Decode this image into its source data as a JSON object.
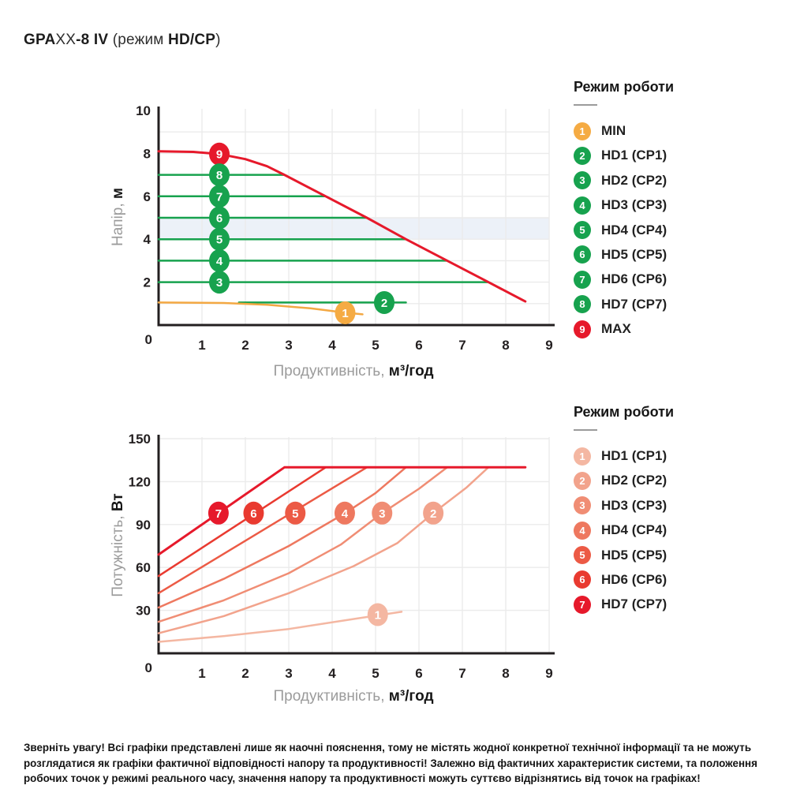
{
  "page": {
    "title_parts": [
      {
        "text": "GPA",
        "bold": true
      },
      {
        "text": "XX",
        "bold": false
      },
      {
        "text": "-8 IV",
        "bold": true
      },
      {
        "text": " (режим ",
        "bold": false
      },
      {
        "text": "HD/CP",
        "bold": true
      },
      {
        "text": ")",
        "bold": false
      }
    ],
    "note": "Зверніть увагу! Всі графіки представлені лише як наочні пояснення, тому не містять жодної конкретної технічної інформації та не можуть розглядатися як графіки фактичної відповідності напору та продуктивності! Залежно від фактичних характеристик системи, та положення робочих точок у режимі реального часу, значення напору та продуктивності можуть суттєво відрізнятись від точок на графіках!"
  },
  "colors": {
    "green": "#17a24e",
    "orange": "#f5ab43",
    "red": "#e6192b",
    "grid": "#ebebeb",
    "axis": "#231f20",
    "band": "#ecf1f8"
  },
  "chart_data": [
    {
      "id": "head-chart",
      "type": "line",
      "xlabel_gray": "Продуктивність,",
      "xlabel_bold": "м³/год",
      "ylabel_gray": "Напір,",
      "ylabel_bold": "м",
      "xlim": [
        0,
        9
      ],
      "ylim": [
        0,
        10
      ],
      "xticks": [
        0,
        1,
        2,
        3,
        4,
        5,
        6,
        7,
        8,
        9
      ],
      "yticks": [
        2,
        4,
        6,
        8,
        10
      ],
      "grid_y": [
        1,
        2,
        3,
        4,
        5,
        6,
        7,
        8,
        9
      ],
      "band": {
        "y0": 4,
        "y1": 5,
        "color": "#ecf1f8"
      },
      "series": [
        {
          "name": "HD7 (CP7)",
          "color": "#17a24e",
          "width": 2.5,
          "points": [
            [
              0,
              7
            ],
            [
              2.9,
              7
            ]
          ]
        },
        {
          "name": "HD6 (CP6)",
          "color": "#17a24e",
          "width": 2.5,
          "points": [
            [
              0,
              6
            ],
            [
              3.85,
              6
            ]
          ]
        },
        {
          "name": "HD5 (CP5)",
          "color": "#17a24e",
          "width": 2.5,
          "points": [
            [
              0,
              5
            ],
            [
              4.8,
              5
            ]
          ]
        },
        {
          "name": "HD4 (CP4)",
          "color": "#17a24e",
          "width": 2.5,
          "points": [
            [
              0,
              4
            ],
            [
              5.7,
              4
            ]
          ]
        },
        {
          "name": "HD3 (CP3)",
          "color": "#17a24e",
          "width": 2.5,
          "points": [
            [
              0,
              3
            ],
            [
              6.65,
              3
            ]
          ]
        },
        {
          "name": "HD2 (CP2)",
          "color": "#17a24e",
          "width": 2.5,
          "points": [
            [
              0,
              2
            ],
            [
              7.6,
              2
            ]
          ]
        },
        {
          "name": "HD1 (CP1)",
          "color": "#17a24e",
          "width": 2.5,
          "points": [
            [
              1.85,
              1.05
            ],
            [
              5.7,
              1.05
            ]
          ]
        },
        {
          "name": "MIN",
          "color": "#f3a843",
          "width": 2.5,
          "points": [
            [
              0,
              1.05
            ],
            [
              1.5,
              1.03
            ],
            [
              2.5,
              0.95
            ],
            [
              3.5,
              0.78
            ],
            [
              4.3,
              0.58
            ],
            [
              4.7,
              0.5
            ]
          ]
        },
        {
          "name": "MAX",
          "color": "#e6192b",
          "width": 3,
          "points": [
            [
              0,
              8.1
            ],
            [
              0.8,
              8.07
            ],
            [
              1.4,
              7.97
            ],
            [
              2,
              7.73
            ],
            [
              2.5,
              7.4
            ],
            [
              2.9,
              7.0
            ],
            [
              3.85,
              6.0
            ],
            [
              4.8,
              5.0
            ],
            [
              5.7,
              4.0
            ],
            [
              6.65,
              3.0
            ],
            [
              7.6,
              2.0
            ],
            [
              8.45,
              1.1
            ]
          ]
        }
      ],
      "markers": [
        {
          "n": "9",
          "color": "#e6192b",
          "x": 1.4,
          "y": 7.97
        },
        {
          "n": "8",
          "color": "#17a24e",
          "x": 1.4,
          "y": 7
        },
        {
          "n": "7",
          "color": "#17a24e",
          "x": 1.4,
          "y": 6
        },
        {
          "n": "6",
          "color": "#17a24e",
          "x": 1.4,
          "y": 5
        },
        {
          "n": "5",
          "color": "#17a24e",
          "x": 1.4,
          "y": 4
        },
        {
          "n": "4",
          "color": "#17a24e",
          "x": 1.4,
          "y": 3
        },
        {
          "n": "3",
          "color": "#17a24e",
          "x": 1.4,
          "y": 2
        },
        {
          "n": "2",
          "color": "#17a24e",
          "x": 5.2,
          "y": 1.05
        },
        {
          "n": "1",
          "color": "#f5ab43",
          "x": 4.3,
          "y": 0.57
        }
      ],
      "legend": {
        "title": "Режим роботи",
        "items": [
          {
            "n": "1",
            "color": "#f5ab43",
            "label": "MIN"
          },
          {
            "n": "2",
            "color": "#17a24e",
            "label": "HD1 (CP1)"
          },
          {
            "n": "3",
            "color": "#17a24e",
            "label": "HD2 (CP2)"
          },
          {
            "n": "4",
            "color": "#17a24e",
            "label": "HD3 (CP3)"
          },
          {
            "n": "5",
            "color": "#17a24e",
            "label": "HD4 (CP4)"
          },
          {
            "n": "6",
            "color": "#17a24e",
            "label": "HD5 (CP5)"
          },
          {
            "n": "7",
            "color": "#17a24e",
            "label": "HD6 (CP6)"
          },
          {
            "n": "8",
            "color": "#17a24e",
            "label": "HD7 (CP7)"
          },
          {
            "n": "9",
            "color": "#e6192b",
            "label": "MAX"
          }
        ]
      }
    },
    {
      "id": "power-chart",
      "type": "line",
      "xlabel_gray": "Продуктивність,",
      "xlabel_bold": "м³/год",
      "ylabel_gray": "Потужність,",
      "ylabel_bold": "Вт",
      "xlim": [
        0,
        9
      ],
      "ylim": [
        0,
        150
      ],
      "xticks": [
        0,
        1,
        2,
        3,
        4,
        5,
        6,
        7,
        8,
        9
      ],
      "yticks": [
        30,
        60,
        90,
        120,
        150
      ],
      "grid_y": [
        30,
        60,
        90,
        120,
        150
      ],
      "band": null,
      "series": [
        {
          "name": "HD1 (CP1)",
          "color": "#f4b7a2",
          "width": 2.5,
          "points": [
            [
              0,
              8
            ],
            [
              1.5,
              12
            ],
            [
              3,
              17
            ],
            [
              4.5,
              24
            ],
            [
              5.6,
              29
            ]
          ]
        },
        {
          "name": "HD2 (CP2)",
          "color": "#f2a38c",
          "width": 2.5,
          "points": [
            [
              0,
              14
            ],
            [
              1.5,
              26
            ],
            [
              3,
              42
            ],
            [
              4.5,
              61
            ],
            [
              5.5,
              77
            ],
            [
              6.33,
              98
            ],
            [
              7.1,
              116
            ],
            [
              7.6,
              130
            ]
          ]
        },
        {
          "name": "HD3 (CP3)",
          "color": "#f08d74",
          "width": 2.5,
          "points": [
            [
              0,
              22
            ],
            [
              1.5,
              37
            ],
            [
              3,
              56
            ],
            [
              4.2,
              76
            ],
            [
              5.15,
              98
            ],
            [
              6,
              115
            ],
            [
              6.65,
              130
            ]
          ]
        },
        {
          "name": "HD4 (CP4)",
          "color": "#ee785f",
          "width": 2.5,
          "points": [
            [
              0,
              32
            ],
            [
              1.5,
              52
            ],
            [
              3,
              75
            ],
            [
              4.3,
              98
            ],
            [
              5,
              112
            ],
            [
              5.7,
              130
            ]
          ]
        },
        {
          "name": "HD5 (CP5)",
          "color": "#ec5a45",
          "width": 2.5,
          "points": [
            [
              0,
              42
            ],
            [
              4.8,
              130
            ]
          ]
        },
        {
          "name": "HD6 (CP6)",
          "color": "#e93a30",
          "width": 2.5,
          "points": [
            [
              0,
              54
            ],
            [
              3.85,
              130
            ]
          ]
        },
        {
          "name": "HD7 (CP7)",
          "color": "#e6192b",
          "width": 3,
          "points": [
            [
              0,
              69
            ],
            [
              2.9,
              130
            ],
            [
              8.45,
              130
            ]
          ]
        }
      ],
      "markers": [
        {
          "n": "7",
          "color": "#e6192b",
          "x": 1.38,
          "y": 98
        },
        {
          "n": "6",
          "color": "#e93a30",
          "x": 2.19,
          "y": 98
        },
        {
          "n": "5",
          "color": "#ec5a45",
          "x": 3.15,
          "y": 98
        },
        {
          "n": "4",
          "color": "#ee785f",
          "x": 4.29,
          "y": 98
        },
        {
          "n": "3",
          "color": "#f08d74",
          "x": 5.15,
          "y": 98
        },
        {
          "n": "2",
          "color": "#f2a38c",
          "x": 6.33,
          "y": 98
        },
        {
          "n": "1",
          "color": "#f4b7a2",
          "x": 5.05,
          "y": 27
        }
      ],
      "legend": {
        "title": "Режим роботи",
        "items": [
          {
            "n": "1",
            "color": "#f4b7a2",
            "label": "HD1 (CP1)"
          },
          {
            "n": "2",
            "color": "#f2a38c",
            "label": "HD2 (CP2)"
          },
          {
            "n": "3",
            "color": "#f08d74",
            "label": "HD3 (CP3)"
          },
          {
            "n": "4",
            "color": "#ee785f",
            "label": "HD4 (CP4)"
          },
          {
            "n": "5",
            "color": "#ec5a45",
            "label": "HD5 (CP5)"
          },
          {
            "n": "6",
            "color": "#e93a30",
            "label": "HD6 (CP6)"
          },
          {
            "n": "7",
            "color": "#e6192b",
            "label": "HD7 (CP7)"
          }
        ]
      }
    }
  ]
}
